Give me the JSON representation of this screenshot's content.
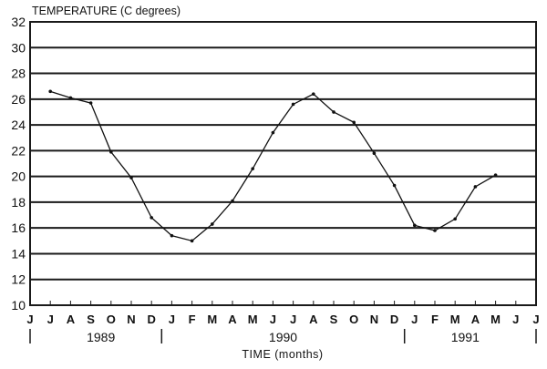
{
  "chart_data": {
    "type": "line",
    "title": "TEMPERATURE (C degrees)",
    "xlabel": "TIME (months)",
    "ylabel": "TEMPERATURE (C degrees)",
    "ylim": [
      10,
      32
    ],
    "yticks": [
      10,
      12,
      14,
      16,
      18,
      20,
      22,
      24,
      26,
      28,
      30,
      32
    ],
    "grid": true,
    "legend": null,
    "x_month_labels": [
      "J",
      "J",
      "A",
      "S",
      "O",
      "N",
      "D",
      "J",
      "F",
      "M",
      "A",
      "M",
      "J",
      "J",
      "A",
      "S",
      "O",
      "N",
      "D",
      "J",
      "F",
      "M",
      "A",
      "M",
      "J",
      "J"
    ],
    "year_labels": [
      {
        "label": "1989",
        "center_index": 3.5
      },
      {
        "label": "1990",
        "center_index": 12.5
      },
      {
        "label": "1991",
        "center_index": 21.5
      }
    ],
    "year_separators_index": [
      0,
      6.5,
      18.5,
      25
    ],
    "categories": [
      "Jul 1989",
      "Aug 1989",
      "Sep 1989",
      "Oct 1989",
      "Nov 1989",
      "Dec 1989",
      "Jan 1990",
      "Feb 1990",
      "Mar 1990",
      "Apr 1990",
      "May 1990",
      "Jun 1990",
      "Jul 1990",
      "Aug 1990",
      "Sep 1990",
      "Oct 1990",
      "Nov 1990",
      "Dec 1990",
      "Jan 1991",
      "Feb 1991",
      "Mar 1991",
      "Apr 1991",
      "May 1991"
    ],
    "x_index": [
      1,
      2,
      3,
      4,
      5,
      6,
      7,
      8,
      9,
      10,
      11,
      12,
      13,
      14,
      15,
      16,
      17,
      18,
      19,
      20,
      21,
      22,
      23
    ],
    "series": [
      {
        "name": "Temperature",
        "values": [
          26.6,
          26.1,
          25.7,
          21.9,
          19.9,
          16.8,
          15.4,
          15.0,
          16.3,
          18.1,
          20.6,
          23.4,
          25.6,
          26.4,
          25.0,
          24.2,
          21.8,
          19.3,
          16.2,
          15.8,
          16.7,
          19.2,
          20.1
        ]
      }
    ]
  }
}
